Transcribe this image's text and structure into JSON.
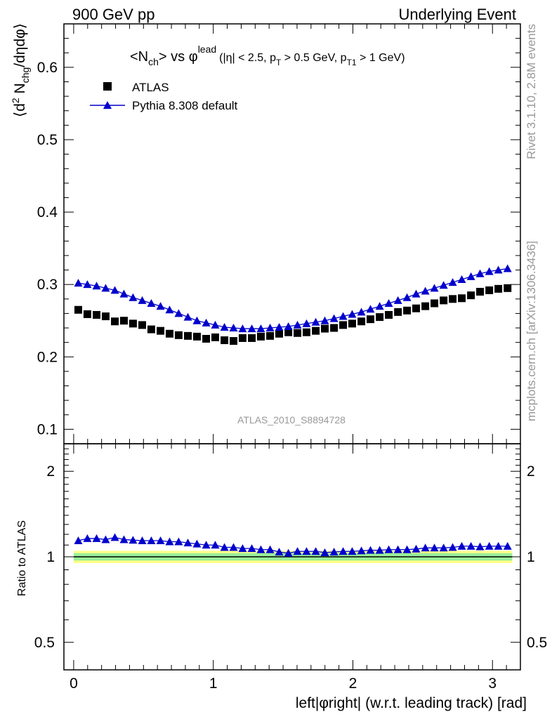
{
  "header": {
    "left": "900 GeV pp",
    "right": "Underlying Event"
  },
  "side_text": {
    "top": "Rivet 3.1.10,  2.8M events",
    "bottom": "mcplots.cern.ch [arXiv:1306.3436]"
  },
  "plot_title": {
    "main": "<N",
    "main_sub": "ch",
    "vs": "> vs φ",
    "vs_sup": "lead",
    "cuts_a": "(|η| < 2.5, p",
    "cuts_a_sub": "T",
    "cuts_b": " > 0.5 GeV, p",
    "cuts_b_sub": "T1",
    "cuts_c": " > 1 GeV)"
  },
  "watermark": "ATLAS_2010_S8894728",
  "legend": {
    "data_label": "ATLAS",
    "mc_label": "Pythia 8.308 default"
  },
  "colors": {
    "data": "#000000",
    "mc": "#0000cc",
    "band_inner": "#99ee99",
    "band_outer": "#ffff88",
    "ref_line": "#008800"
  },
  "chart_data": [
    {
      "type": "scatter",
      "title": "<Nch> vs φlead (|η| < 2.5, pT > 0.5 GeV, pT1 > 1 GeV)",
      "xlabel": "left|φright| (w.r.t. leading track) [rad]",
      "ylabel": "⟨d² Nchg/dηdφ⟩",
      "xlim": [
        -0.07,
        3.2
      ],
      "ylim": [
        0.08,
        0.66
      ],
      "x_ticks": [
        0,
        1,
        2,
        3
      ],
      "y_ticks": [
        0.1,
        0.2,
        0.3,
        0.4,
        0.5,
        0.6
      ],
      "y_tick_labels": [
        "0.1",
        "0.2",
        "0.3",
        "0.4",
        "0.5",
        "0.6"
      ],
      "legend_position": "top-left",
      "x": [
        0.033,
        0.098,
        0.164,
        0.229,
        0.295,
        0.36,
        0.425,
        0.491,
        0.556,
        0.622,
        0.687,
        0.752,
        0.818,
        0.883,
        0.949,
        1.014,
        1.08,
        1.145,
        1.21,
        1.276,
        1.341,
        1.407,
        1.472,
        1.538,
        1.603,
        1.668,
        1.734,
        1.799,
        1.865,
        1.93,
        1.995,
        2.061,
        2.126,
        2.192,
        2.257,
        2.323,
        2.388,
        2.453,
        2.519,
        2.584,
        2.65,
        2.715,
        2.78,
        2.846,
        2.911,
        2.977,
        3.042,
        3.108
      ],
      "series": [
        {
          "name": "ATLAS",
          "marker": "square",
          "values": [
            0.265,
            0.259,
            0.258,
            0.256,
            0.249,
            0.25,
            0.246,
            0.244,
            0.238,
            0.236,
            0.232,
            0.23,
            0.229,
            0.228,
            0.225,
            0.227,
            0.223,
            0.222,
            0.226,
            0.226,
            0.228,
            0.229,
            0.232,
            0.234,
            0.233,
            0.234,
            0.236,
            0.239,
            0.24,
            0.244,
            0.246,
            0.249,
            0.252,
            0.255,
            0.258,
            0.262,
            0.264,
            0.267,
            0.27,
            0.274,
            0.278,
            0.28,
            0.281,
            0.285,
            0.29,
            0.292,
            0.294,
            0.295
          ]
        },
        {
          "name": "Pythia 8.308 default",
          "marker": "triangle",
          "line": true,
          "values": [
            0.302,
            0.3,
            0.298,
            0.295,
            0.292,
            0.287,
            0.282,
            0.278,
            0.274,
            0.27,
            0.265,
            0.26,
            0.255,
            0.25,
            0.247,
            0.244,
            0.241,
            0.24,
            0.239,
            0.239,
            0.239,
            0.24,
            0.241,
            0.242,
            0.244,
            0.246,
            0.248,
            0.25,
            0.253,
            0.256,
            0.259,
            0.262,
            0.266,
            0.27,
            0.274,
            0.278,
            0.282,
            0.287,
            0.291,
            0.295,
            0.299,
            0.303,
            0.307,
            0.311,
            0.315,
            0.318,
            0.32,
            0.322
          ]
        }
      ]
    },
    {
      "type": "scatter",
      "title": "",
      "xlabel": "left|φright| (w.r.t. leading track) [rad]",
      "ylabel": "Ratio to ATLAS",
      "yscale": "log",
      "xlim": [
        -0.07,
        3.2
      ],
      "ylim": [
        0.4,
        2.5
      ],
      "x_ticks": [
        0,
        1,
        2,
        3
      ],
      "y_ticks": [
        0.5,
        1,
        2
      ],
      "y_tick_labels": [
        "0.5",
        "1",
        "2"
      ],
      "reference_line": 1,
      "band_inner": [
        0.97,
        1.03
      ],
      "band_outer": [
        0.95,
        1.05
      ],
      "x": [
        0.033,
        0.098,
        0.164,
        0.229,
        0.295,
        0.36,
        0.425,
        0.491,
        0.556,
        0.622,
        0.687,
        0.752,
        0.818,
        0.883,
        0.949,
        1.014,
        1.08,
        1.145,
        1.21,
        1.276,
        1.341,
        1.407,
        1.472,
        1.538,
        1.603,
        1.668,
        1.734,
        1.799,
        1.865,
        1.93,
        1.995,
        2.061,
        2.126,
        2.192,
        2.257,
        2.323,
        2.388,
        2.453,
        2.519,
        2.584,
        2.65,
        2.715,
        2.78,
        2.846,
        2.911,
        2.977,
        3.042,
        3.108
      ],
      "series": [
        {
          "name": "Pythia 8.308 default",
          "marker": "triangle",
          "line": true,
          "values": [
            1.14,
            1.16,
            1.16,
            1.15,
            1.17,
            1.15,
            1.145,
            1.14,
            1.14,
            1.14,
            1.13,
            1.13,
            1.12,
            1.11,
            1.1,
            1.1,
            1.08,
            1.08,
            1.07,
            1.07,
            1.06,
            1.06,
            1.04,
            1.03,
            1.045,
            1.045,
            1.045,
            1.035,
            1.04,
            1.045,
            1.045,
            1.05,
            1.055,
            1.055,
            1.06,
            1.06,
            1.06,
            1.065,
            1.075,
            1.075,
            1.075,
            1.08,
            1.09,
            1.09,
            1.085,
            1.09,
            1.09,
            1.09
          ]
        }
      ]
    }
  ]
}
